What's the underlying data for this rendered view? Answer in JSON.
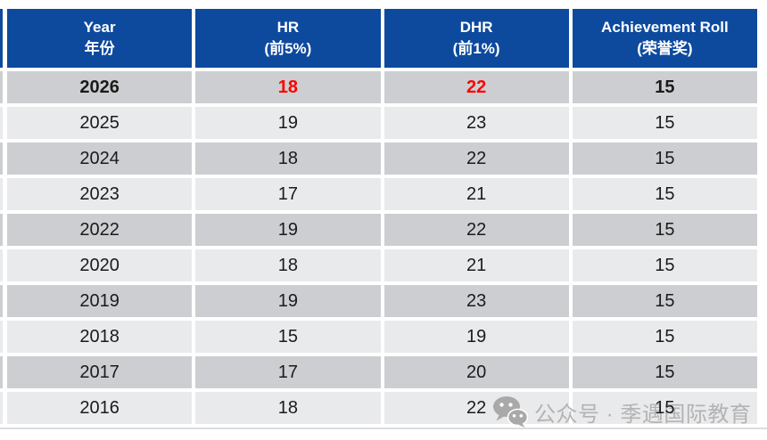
{
  "chart_data": {
    "type": "table",
    "columns": [
      {
        "en": "Year",
        "zh": "年份"
      },
      {
        "en": "HR",
        "zh": "(前5%)"
      },
      {
        "en": "DHR",
        "zh": "(前1%)"
      },
      {
        "en": "Achievement Roll",
        "zh": "(荣誉奖)"
      }
    ],
    "rows": [
      {
        "year": "2026",
        "hr": "18",
        "dhr": "22",
        "roll": "15",
        "highlight": true
      },
      {
        "year": "2025",
        "hr": "19",
        "dhr": "23",
        "roll": "15",
        "highlight": false
      },
      {
        "year": "2024",
        "hr": "18",
        "dhr": "22",
        "roll": "15",
        "highlight": false
      },
      {
        "year": "2023",
        "hr": "17",
        "dhr": "21",
        "roll": "15",
        "highlight": false
      },
      {
        "year": "2022",
        "hr": "19",
        "dhr": "22",
        "roll": "15",
        "highlight": false
      },
      {
        "year": "2020",
        "hr": "18",
        "dhr": "21",
        "roll": "15",
        "highlight": false
      },
      {
        "year": "2019",
        "hr": "19",
        "dhr": "23",
        "roll": "15",
        "highlight": false
      },
      {
        "year": "2018",
        "hr": "15",
        "dhr": "19",
        "roll": "15",
        "highlight": false
      },
      {
        "year": "2017",
        "hr": "17",
        "dhr": "20",
        "roll": "15",
        "highlight": false
      },
      {
        "year": "2016",
        "hr": "18",
        "dhr": "22",
        "roll": "15",
        "highlight": false
      }
    ]
  },
  "watermark": {
    "icon": "wechat-icon",
    "text": "公众号 · 季遇国际教育"
  },
  "colors": {
    "header_bg": "#0d4a9e",
    "header_text": "#ffffff",
    "row_dark": "#cdced1",
    "row_light": "#e9eaec",
    "cell_text": "#1b1b1b",
    "highlight_red": "#ff0000",
    "watermark_gray": "#b3b3b3"
  }
}
